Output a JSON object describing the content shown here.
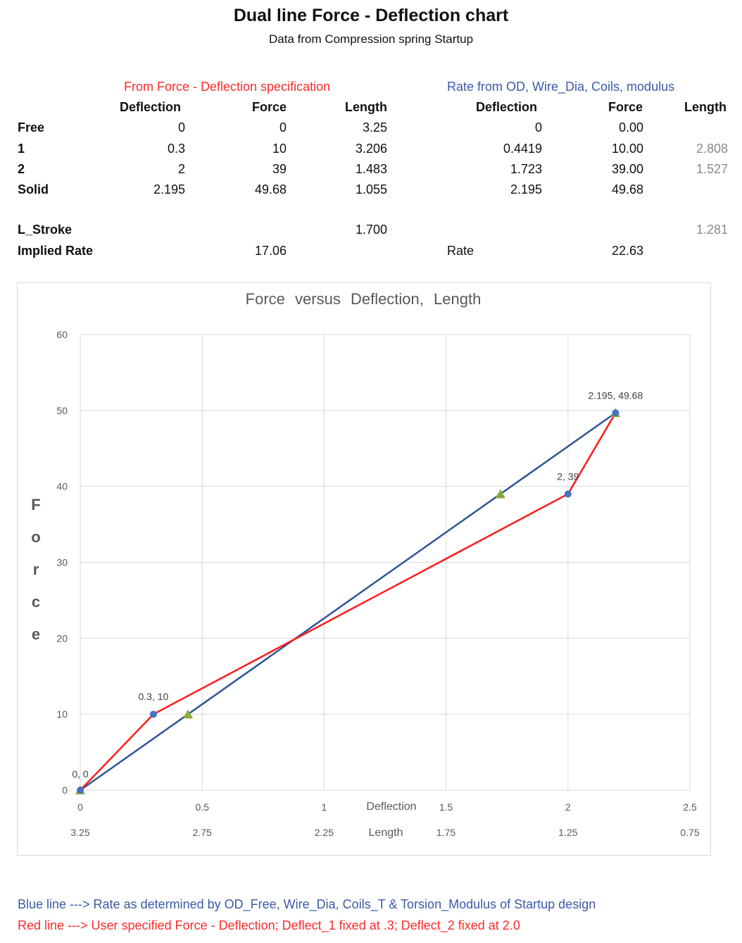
{
  "page": {
    "title": "Dual line Force - Deflection chart",
    "subtitle": "Data from Compression spring Startup"
  },
  "table_left": {
    "caption": "From Force - Deflection specification",
    "headers": [
      "Deflection",
      "Force",
      "Length"
    ],
    "rows": [
      {
        "label": "Free",
        "deflection": "0",
        "force": "0",
        "length": "3.25"
      },
      {
        "label": "1",
        "deflection": "0.3",
        "force": "10",
        "length": "3.206"
      },
      {
        "label": "2",
        "deflection": "2",
        "force": "39",
        "length": "1.483"
      },
      {
        "label": "Solid",
        "deflection": "2.195",
        "force": "49.68",
        "length": "1.055"
      }
    ],
    "l_stroke_label": "L_Stroke",
    "l_stroke_value": "1.700",
    "implied_rate_label": "Implied Rate",
    "implied_rate_value": "17.06"
  },
  "table_right": {
    "caption": "Rate from OD, Wire_Dia, Coils, modulus",
    "headers": [
      "Deflection",
      "Force",
      "Length"
    ],
    "rows": [
      {
        "deflection": "0",
        "force": "0.00",
        "length": ""
      },
      {
        "deflection": "0.4419",
        "force": "10.00",
        "length": "2.808"
      },
      {
        "deflection": "1.723",
        "force": "39.00",
        "length": "1.527"
      },
      {
        "deflection": "2.195",
        "force": "49.68",
        "length": ""
      }
    ],
    "l_stroke_value": "1.281",
    "rate_label": "Rate",
    "rate_value": "22.63"
  },
  "chart_data": {
    "type": "line",
    "title_parts": [
      "Force",
      "versus",
      "Deflection,",
      "Length"
    ],
    "ylabel": "Force",
    "xlabel": "Deflection",
    "x2label": "Length",
    "xlim": [
      0,
      2.5
    ],
    "ylim": [
      0,
      60
    ],
    "x_ticks": [
      "0",
      "0.5",
      "1",
      "1.5",
      "2",
      "2.5"
    ],
    "x_tick_values": [
      0,
      0.5,
      1,
      1.5,
      2,
      2.5
    ],
    "x2_ticks": [
      "3.25",
      "2.75",
      "2.25",
      "1.75",
      "1.25",
      "0.75"
    ],
    "y_ticks": [
      "0",
      "10",
      "20",
      "30",
      "40",
      "50",
      "60"
    ],
    "y_tick_values": [
      0,
      10,
      20,
      30,
      40,
      50,
      60
    ],
    "grid": true,
    "series": [
      {
        "color": "#ff1a1a",
        "marker": "circle",
        "marker_color": "#4472c4",
        "x": [
          0,
          0.3,
          2,
          2.195
        ],
        "y": [
          0,
          10,
          39,
          49.68
        ],
        "labels": [
          "0, 0",
          "0.3, 10",
          "2, 39",
          "2.195, 49.68"
        ]
      },
      {
        "color": "#2f5597",
        "marker": "triangle",
        "marker_color": "#8aaa3c",
        "x": [
          0,
          0.4419,
          1.723,
          2.195
        ],
        "y": [
          0,
          10,
          39,
          49.68
        ]
      }
    ]
  },
  "footnotes": {
    "blue": "Blue line ---> Rate as determined by OD_Free, Wire_Dia, Coils_T & Torsion_Modulus of Startup design",
    "red": "Red line  ---> User specified Force - Deflection; Deflect_1 fixed at .3; Deflect_2 fixed at 2.0"
  }
}
